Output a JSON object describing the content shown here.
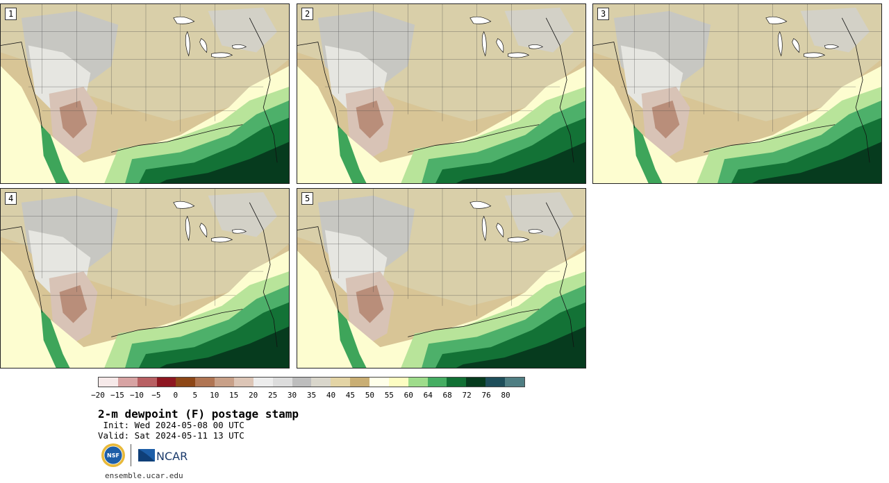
{
  "panels": [
    {
      "label": "1"
    },
    {
      "label": "2"
    },
    {
      "label": "3"
    },
    {
      "label": "4"
    },
    {
      "label": "5"
    }
  ],
  "colorbar": {
    "colors": [
      "#f6e9e9",
      "#d7a3a3",
      "#b86063",
      "#8e1721",
      "#8d4717",
      "#b07553",
      "#c8a088",
      "#dcc5b6",
      "#ececec",
      "#dcdcdc",
      "#bdbdbd",
      "#d9d6cb",
      "#e3d4a5",
      "#c9ae74",
      "#ffffe9",
      "#fdfdc2",
      "#9edc8b",
      "#45ad62",
      "#117034",
      "#063b1e",
      "#1e4e5a",
      "#4f7e83"
    ],
    "ticks": [
      "−20",
      "−15",
      "−10",
      "−5",
      "0",
      "5",
      "10",
      "15",
      "20",
      "25",
      "30",
      "35",
      "40",
      "45",
      "50",
      "55",
      "60",
      "64",
      "68",
      "72",
      "76",
      "80"
    ]
  },
  "title": "2-m dewpoint (F) postage stamp",
  "init": " Init: Wed 2024-05-08 00 UTC",
  "valid": "Valid: Sat 2024-05-11 13 UTC",
  "logos": {
    "nsf": "NSF",
    "ncar": "NCAR"
  },
  "site": "ensemble.ucar.edu"
}
